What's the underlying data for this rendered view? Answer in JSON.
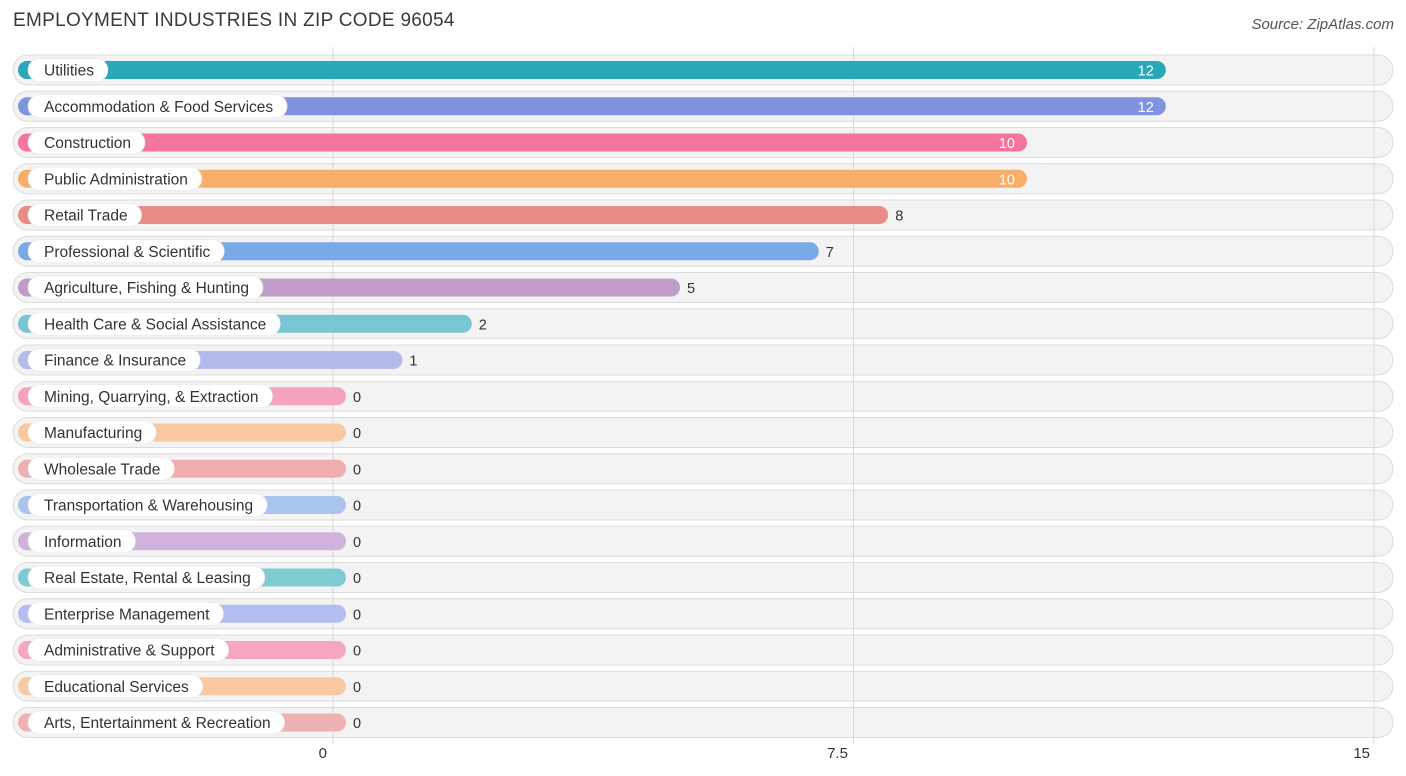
{
  "title": "EMPLOYMENT INDUSTRIES IN ZIP CODE 96054",
  "source": "Source: ZipAtlas.com",
  "chart_data": {
    "type": "bar",
    "orientation": "horizontal",
    "title": "EMPLOYMENT INDUSTRIES IN ZIP CODE 96054",
    "xlim": [
      0,
      15
    ],
    "xticks": [
      "0",
      "7.5",
      "15"
    ],
    "grid": true,
    "categories": [
      "Utilities",
      "Accommodation & Food Services",
      "Construction",
      "Public Administration",
      "Retail Trade",
      "Professional & Scientific",
      "Agriculture, Fishing & Hunting",
      "Health Care & Social Assistance",
      "Finance & Insurance",
      "Mining, Quarrying, & Extraction",
      "Manufacturing",
      "Wholesale Trade",
      "Transportation & Warehousing",
      "Information",
      "Real Estate, Rental & Leasing",
      "Enterprise Management",
      "Administrative & Support",
      "Educational Services",
      "Arts, Entertainment & Recreation"
    ],
    "values": [
      12,
      12,
      10,
      10,
      8,
      7,
      5,
      2,
      1,
      0,
      0,
      0,
      0,
      0,
      0,
      0,
      0,
      0,
      0
    ],
    "colors": [
      "#2aa7b8",
      "#8093e0",
      "#f3759b",
      "#f7ae68",
      "#e88c85",
      "#79a9e6",
      "#c09dc8",
      "#77c6d2",
      "#b4bbeb",
      "#f5a2bd",
      "#f9c89f",
      "#f0aeae",
      "#a9c5ed",
      "#cfb3db",
      "#7ecbd2",
      "#b4bdef",
      "#f6a6c1",
      "#f9c9a2",
      "#efb2b2"
    ]
  }
}
